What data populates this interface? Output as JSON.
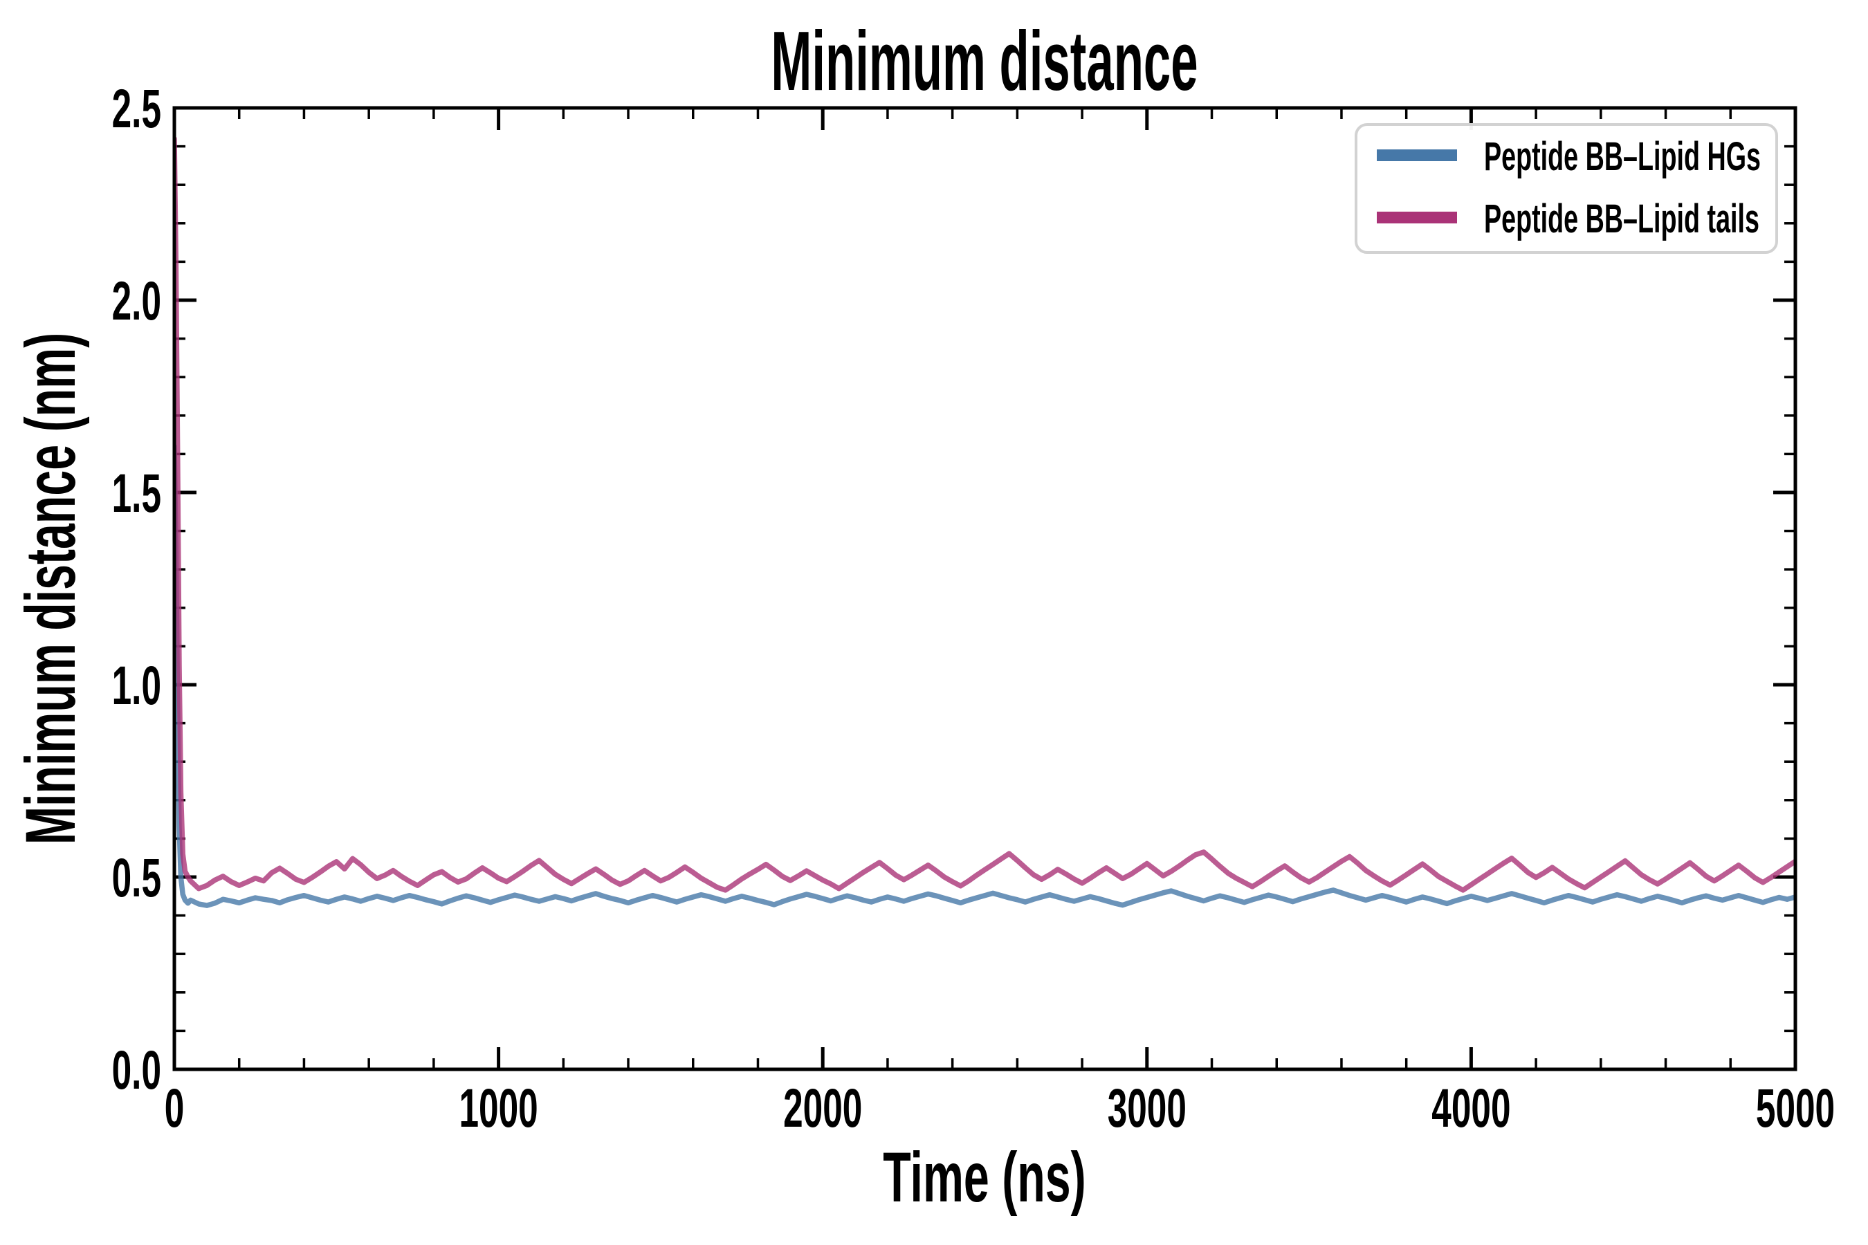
{
  "chart_data": {
    "type": "line",
    "title": "Minimum distance",
    "xlabel": "Time (ns)",
    "ylabel": "Minimum distance (nm)",
    "xlim": [
      0,
      5000
    ],
    "ylim": [
      0,
      2.5
    ],
    "xticks": [
      0,
      1000,
      2000,
      3000,
      4000,
      5000
    ],
    "xtick_labels": [
      "0",
      "1000",
      "2000",
      "3000",
      "4000",
      "5000"
    ],
    "yticks": [
      0,
      0.5,
      1.0,
      1.5,
      2.0,
      2.5
    ],
    "ytick_labels": [
      "0.0",
      "0.5",
      "1.0",
      "1.5",
      "2.0",
      "2.5"
    ],
    "x_minor_step": 200,
    "y_minor_step": 0.1,
    "grid": false,
    "legend_position": "upper-right",
    "axis_color": "#000000",
    "background_color": "#ffffff",
    "series": [
      {
        "name": "Peptide BB–Lipid HGs",
        "color": "#4678a8",
        "line_alpha": 0.8,
        "spike": [
          [
            0,
            1.62
          ],
          [
            5,
            1.35
          ],
          [
            10,
            0.95
          ],
          [
            15,
            0.63
          ],
          [
            20,
            0.5
          ],
          [
            26,
            0.455
          ],
          [
            33,
            0.44
          ],
          [
            42,
            0.432
          ]
        ],
        "x0": 50,
        "dx": 25,
        "y": [
          0.44,
          0.43,
          0.426,
          0.432,
          0.442,
          0.438,
          0.433,
          0.44,
          0.446,
          0.442,
          0.439,
          0.433,
          0.441,
          0.447,
          0.452,
          0.446,
          0.44,
          0.435,
          0.442,
          0.448,
          0.443,
          0.437,
          0.444,
          0.45,
          0.445,
          0.439,
          0.446,
          0.452,
          0.447,
          0.441,
          0.436,
          0.43,
          0.438,
          0.445,
          0.451,
          0.446,
          0.44,
          0.434,
          0.441,
          0.447,
          0.453,
          0.448,
          0.442,
          0.437,
          0.443,
          0.449,
          0.444,
          0.438,
          0.445,
          0.451,
          0.457,
          0.45,
          0.444,
          0.439,
          0.433,
          0.44,
          0.446,
          0.452,
          0.447,
          0.441,
          0.435,
          0.442,
          0.448,
          0.454,
          0.449,
          0.443,
          0.437,
          0.444,
          0.45,
          0.445,
          0.439,
          0.434,
          0.428,
          0.436,
          0.443,
          0.449,
          0.455,
          0.45,
          0.444,
          0.438,
          0.445,
          0.451,
          0.446,
          0.44,
          0.435,
          0.442,
          0.448,
          0.443,
          0.437,
          0.444,
          0.45,
          0.456,
          0.451,
          0.445,
          0.439,
          0.433,
          0.44,
          0.446,
          0.452,
          0.458,
          0.452,
          0.446,
          0.441,
          0.435,
          0.442,
          0.448,
          0.454,
          0.448,
          0.442,
          0.437,
          0.443,
          0.449,
          0.444,
          0.438,
          0.432,
          0.427,
          0.434,
          0.441,
          0.447,
          0.453,
          0.459,
          0.464,
          0.457,
          0.45,
          0.444,
          0.438,
          0.445,
          0.451,
          0.446,
          0.44,
          0.434,
          0.441,
          0.447,
          0.453,
          0.448,
          0.442,
          0.436,
          0.443,
          0.449,
          0.455,
          0.461,
          0.466,
          0.459,
          0.452,
          0.446,
          0.44,
          0.446,
          0.452,
          0.447,
          0.441,
          0.435,
          0.442,
          0.448,
          0.443,
          0.437,
          0.431,
          0.438,
          0.444,
          0.45,
          0.445,
          0.439,
          0.445,
          0.451,
          0.457,
          0.451,
          0.445,
          0.439,
          0.433,
          0.44,
          0.446,
          0.452,
          0.447,
          0.441,
          0.435,
          0.442,
          0.448,
          0.454,
          0.449,
          0.443,
          0.437,
          0.444,
          0.45,
          0.445,
          0.439,
          0.433,
          0.44,
          0.446,
          0.451,
          0.445,
          0.44,
          0.446,
          0.452,
          0.446,
          0.44,
          0.434,
          0.441,
          0.447,
          0.442,
          0.448
        ]
      },
      {
        "name": "Peptide BB–Lipid tails",
        "color": "#aa3377",
        "line_alpha": 0.8,
        "spike": [
          [
            0,
            2.42
          ],
          [
            5,
            2.1
          ],
          [
            10,
            1.6
          ],
          [
            15,
            1.05
          ],
          [
            20,
            0.72
          ],
          [
            26,
            0.56
          ],
          [
            33,
            0.515
          ],
          [
            42,
            0.5
          ]
        ],
        "x0": 50,
        "dx": 25,
        "y": [
          0.49,
          0.47,
          0.478,
          0.492,
          0.502,
          0.488,
          0.478,
          0.487,
          0.497,
          0.49,
          0.511,
          0.523,
          0.509,
          0.494,
          0.486,
          0.499,
          0.513,
          0.528,
          0.54,
          0.521,
          0.548,
          0.532,
          0.512,
          0.496,
          0.505,
          0.517,
          0.502,
          0.489,
          0.478,
          0.492,
          0.506,
          0.514,
          0.499,
          0.487,
          0.495,
          0.51,
          0.524,
          0.511,
          0.497,
          0.488,
          0.501,
          0.515,
          0.53,
          0.543,
          0.525,
          0.507,
          0.494,
          0.483,
          0.496,
          0.509,
          0.521,
          0.507,
          0.492,
          0.481,
          0.49,
          0.504,
          0.517,
          0.503,
          0.49,
          0.499,
          0.512,
          0.526,
          0.512,
          0.497,
          0.485,
          0.473,
          0.466,
          0.48,
          0.495,
          0.508,
          0.52,
          0.533,
          0.518,
          0.502,
          0.491,
          0.503,
          0.516,
          0.504,
          0.492,
          0.482,
          0.47,
          0.484,
          0.498,
          0.512,
          0.525,
          0.538,
          0.522,
          0.505,
          0.493,
          0.505,
          0.518,
          0.531,
          0.516,
          0.5,
          0.488,
          0.477,
          0.49,
          0.505,
          0.519,
          0.533,
          0.547,
          0.561,
          0.543,
          0.524,
          0.506,
          0.494,
          0.506,
          0.52,
          0.508,
          0.495,
          0.484,
          0.497,
          0.511,
          0.524,
          0.51,
          0.496,
          0.507,
          0.521,
          0.535,
          0.519,
          0.503,
          0.515,
          0.529,
          0.544,
          0.558,
          0.565,
          0.547,
          0.528,
          0.51,
          0.497,
          0.486,
          0.475,
          0.488,
          0.502,
          0.516,
          0.529,
          0.513,
          0.498,
          0.487,
          0.499,
          0.513,
          0.527,
          0.541,
          0.553,
          0.536,
          0.517,
          0.503,
          0.49,
          0.479,
          0.492,
          0.506,
          0.52,
          0.534,
          0.518,
          0.501,
          0.489,
          0.477,
          0.466,
          0.48,
          0.494,
          0.508,
          0.522,
          0.536,
          0.549,
          0.531,
          0.512,
          0.499,
          0.511,
          0.525,
          0.51,
          0.495,
          0.483,
          0.472,
          0.486,
          0.5,
          0.514,
          0.528,
          0.542,
          0.524,
          0.506,
          0.493,
          0.482,
          0.495,
          0.509,
          0.523,
          0.537,
          0.52,
          0.502,
          0.49,
          0.503,
          0.517,
          0.531,
          0.515,
          0.498,
          0.486,
          0.499,
          0.513,
          0.527,
          0.541
        ]
      }
    ]
  }
}
